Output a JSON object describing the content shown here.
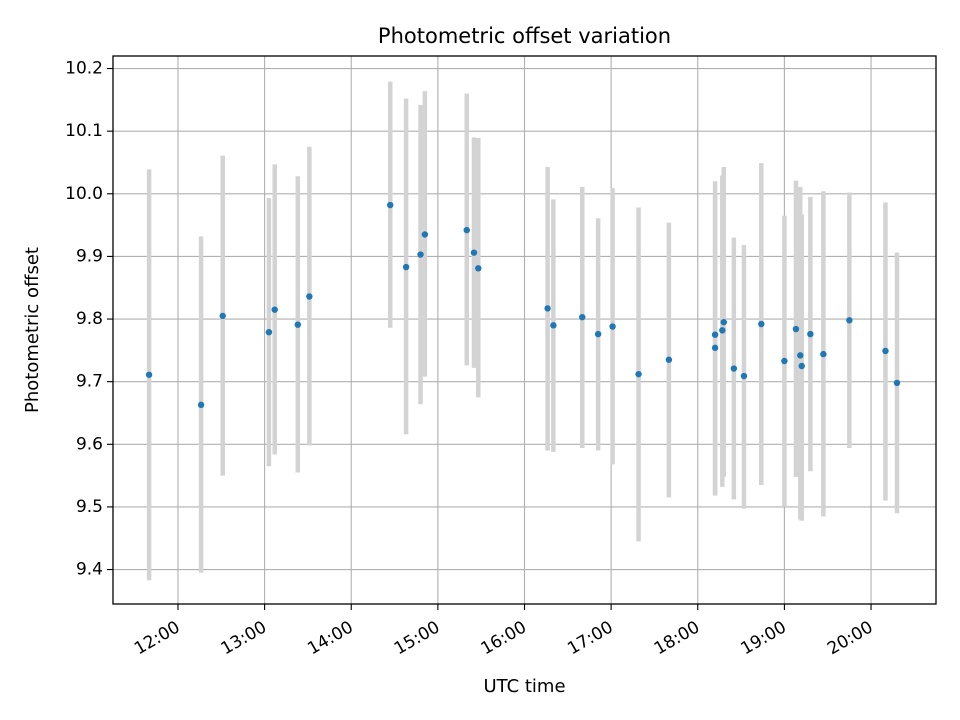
{
  "chart_data": {
    "type": "scatter",
    "title": "Photometric offset variation",
    "xlabel": "UTC time",
    "ylabel": "Photometric offset",
    "x_axis_type": "time",
    "xlim": [
      "11:15",
      "20:45"
    ],
    "ylim": [
      9.345,
      10.22
    ],
    "x_ticks": [
      "12:00",
      "13:00",
      "14:00",
      "15:00",
      "16:00",
      "17:00",
      "18:00",
      "19:00",
      "20:00"
    ],
    "y_ticks": [
      "9.4",
      "9.5",
      "9.6",
      "9.7",
      "9.8",
      "9.9",
      "10.0",
      "10.1",
      "10.2"
    ],
    "grid": true,
    "point_color": "#1f77b4",
    "errorbar_color": "#d3d3d3",
    "points": [
      {
        "x": "11:40",
        "y": 9.711,
        "ylow": 9.383,
        "yhigh": 10.039
      },
      {
        "x": "12:16",
        "y": 9.663,
        "ylow": 9.395,
        "yhigh": 9.932
      },
      {
        "x": "12:31",
        "y": 9.805,
        "ylow": 9.55,
        "yhigh": 10.061
      },
      {
        "x": "13:03",
        "y": 9.779,
        "ylow": 9.565,
        "yhigh": 9.993
      },
      {
        "x": "13:07",
        "y": 9.815,
        "ylow": 9.584,
        "yhigh": 10.047
      },
      {
        "x": "13:23",
        "y": 9.791,
        "ylow": 9.555,
        "yhigh": 10.028
      },
      {
        "x": "13:31",
        "y": 9.836,
        "ylow": 9.598,
        "yhigh": 10.075
      },
      {
        "x": "14:27",
        "y": 9.982,
        "ylow": 9.786,
        "yhigh": 10.179
      },
      {
        "x": "14:38",
        "y": 9.883,
        "ylow": 9.616,
        "yhigh": 10.152
      },
      {
        "x": "14:48",
        "y": 9.903,
        "ylow": 9.664,
        "yhigh": 10.142
      },
      {
        "x": "14:51",
        "y": 9.935,
        "ylow": 9.708,
        "yhigh": 10.164
      },
      {
        "x": "15:20",
        "y": 9.942,
        "ylow": 9.726,
        "yhigh": 10.16
      },
      {
        "x": "15:25",
        "y": 9.906,
        "ylow": 9.722,
        "yhigh": 10.09
      },
      {
        "x": "15:28",
        "y": 9.881,
        "ylow": 9.675,
        "yhigh": 10.089
      },
      {
        "x": "16:16",
        "y": 9.817,
        "ylow": 9.59,
        "yhigh": 10.043
      },
      {
        "x": "16:20",
        "y": 9.79,
        "ylow": 9.588,
        "yhigh": 9.991
      },
      {
        "x": "16:40",
        "y": 9.803,
        "ylow": 9.594,
        "yhigh": 10.011
      },
      {
        "x": "16:51",
        "y": 9.776,
        "ylow": 9.59,
        "yhigh": 9.961
      },
      {
        "x": "17:01",
        "y": 9.788,
        "ylow": 9.568,
        "yhigh": 10.009
      },
      {
        "x": "17:19",
        "y": 9.712,
        "ylow": 9.445,
        "yhigh": 9.978
      },
      {
        "x": "17:40",
        "y": 9.735,
        "ylow": 9.515,
        "yhigh": 9.954
      },
      {
        "x": "18:12",
        "y": 9.775,
        "ylow": 9.518,
        "yhigh": 10.02
      },
      {
        "x": "18:12",
        "y": 9.754,
        "ylow": 9.52,
        "yhigh": 9.997
      },
      {
        "x": "18:17",
        "y": 9.782,
        "ylow": 9.532,
        "yhigh": 10.029
      },
      {
        "x": "18:18",
        "y": 9.795,
        "ylow": 9.548,
        "yhigh": 10.043
      },
      {
        "x": "18:25",
        "y": 9.721,
        "ylow": 9.512,
        "yhigh": 9.93
      },
      {
        "x": "18:32",
        "y": 9.709,
        "ylow": 9.497,
        "yhigh": 9.918
      },
      {
        "x": "18:44",
        "y": 9.792,
        "ylow": 9.535,
        "yhigh": 10.049
      },
      {
        "x": "19:00",
        "y": 9.733,
        "ylow": 9.5,
        "yhigh": 9.965
      },
      {
        "x": "19:08",
        "y": 9.784,
        "ylow": 9.548,
        "yhigh": 10.021
      },
      {
        "x": "19:11",
        "y": 9.742,
        "ylow": 9.48,
        "yhigh": 10.011
      },
      {
        "x": "19:12",
        "y": 9.725,
        "ylow": 9.478,
        "yhigh": 9.967
      },
      {
        "x": "19:18",
        "y": 9.776,
        "ylow": 9.557,
        "yhigh": 9.995
      },
      {
        "x": "19:27",
        "y": 9.744,
        "ylow": 9.485,
        "yhigh": 10.004
      },
      {
        "x": "19:45",
        "y": 9.798,
        "ylow": 9.594,
        "yhigh": 10.002
      },
      {
        "x": "20:10",
        "y": 9.749,
        "ylow": 9.51,
        "yhigh": 9.986
      },
      {
        "x": "20:18",
        "y": 9.698,
        "ylow": 9.49,
        "yhigh": 9.906
      }
    ]
  }
}
